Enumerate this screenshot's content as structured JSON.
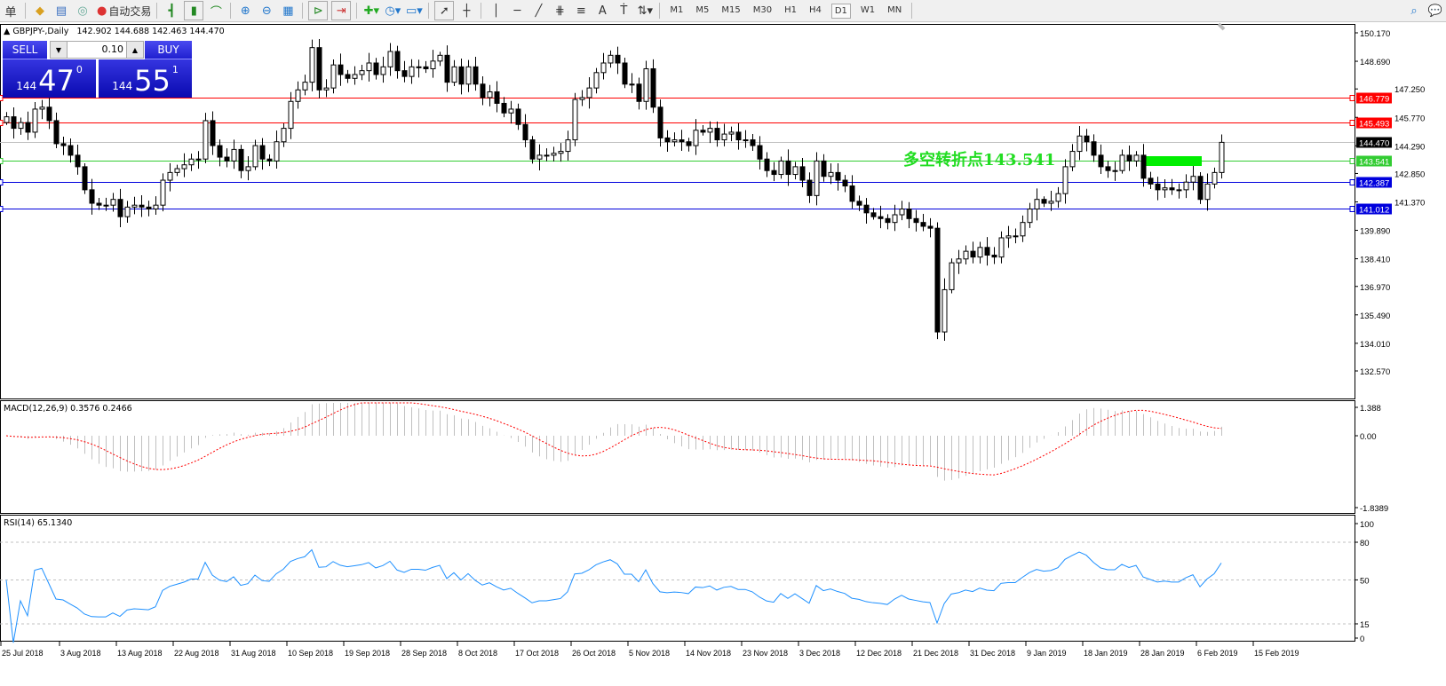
{
  "toolbar": {
    "menu_char": "单",
    "auto_trade": "自动交易",
    "icons": [
      "profiles-icon",
      "market-watch-icon",
      "signals-icon",
      "auto-trade-icon",
      "bar-chart-icon",
      "candlestick-icon",
      "line-chart-icon",
      "zoom-in-icon",
      "zoom-out-icon",
      "tile-windows-icon",
      "chart-shift-icon",
      "autoscroll-icon",
      "new-order-icon",
      "periods-icon",
      "templates-icon",
      "cursor-icon",
      "crosshair-icon",
      "vertical-line-icon",
      "horizontal-line-icon",
      "trendline-icon",
      "fibonacci-icon",
      "fibo-lines-icon",
      "text-icon",
      "text-label-icon",
      "arrows-icon",
      "search-icon",
      "chat-icon"
    ],
    "text_tool": "A",
    "timeframes": [
      "M1",
      "M5",
      "M15",
      "M30",
      "H1",
      "H4",
      "D1",
      "W1",
      "MN"
    ],
    "active_timeframe": "D1"
  },
  "chart": {
    "symbol": "GBPJPY-,Daily",
    "ohlc": "142.902 144.688 142.463 144.470"
  },
  "trade_panel": {
    "sell_label": "SELL",
    "buy_label": "BUY",
    "lot": "0.10",
    "sell": {
      "small": "144",
      "main": "47",
      "sup": "0"
    },
    "buy": {
      "small": "144",
      "main": "55",
      "sup": "1"
    }
  },
  "annotation": {
    "text": "多空转折点143.541",
    "color": "#22dd22"
  },
  "macd": {
    "label": "MACD(12,26,9) 0.3576 0.2466",
    "ticks": [
      "1.388",
      "0.00",
      "-1.8389"
    ]
  },
  "rsi": {
    "label": "RSI(14) 65.1340",
    "ticks": [
      "100",
      "80",
      "50",
      "15",
      "0"
    ]
  },
  "chart_data": {
    "type": "candlestick",
    "price_ticks": [
      "150.170",
      "148.690",
      "147.250",
      "145.770",
      "144.290",
      "142.850",
      "141.370",
      "139.890",
      "138.410",
      "136.970",
      "135.490",
      "134.010",
      "132.570"
    ],
    "ylim": [
      132.57,
      150.17
    ],
    "hlines": [
      {
        "price": "146.779",
        "color": "#ff0000"
      },
      {
        "price": "145.493",
        "color": "#ff0000"
      },
      {
        "price": "144.470",
        "color": "#c0c0c0",
        "label_bg": "#000000"
      },
      {
        "price": "143.541",
        "color": "#33cc33"
      },
      {
        "price": "142.387",
        "color": "#0000dd"
      },
      {
        "price": "141.012",
        "color": "#0000dd"
      }
    ],
    "dates": [
      "25 Jul 2018",
      "3 Aug 2018",
      "13 Aug 2018",
      "22 Aug 2018",
      "31 Aug 2018",
      "10 Sep 2018",
      "19 Sep 2018",
      "28 Sep 2018",
      "8 Oct 2018",
      "17 Oct 2018",
      "26 Oct 2018",
      "5 Nov 2018",
      "14 Nov 2018",
      "23 Nov 2018",
      "3 Dec 2018",
      "12 Dec 2018",
      "21 Dec 2018",
      "31 Dec 2018",
      "9 Jan 2019",
      "18 Jan 2019",
      "28 Jan 2019",
      "6 Feb 2019",
      "15 Feb 2019"
    ],
    "closes": [
      145.8,
      145.2,
      145.5,
      145.0,
      146.2,
      146.3,
      145.6,
      144.4,
      144.3,
      143.8,
      143.2,
      142.0,
      141.3,
      141.2,
      141.2,
      141.5,
      140.6,
      141.1,
      141.2,
      141.1,
      141.0,
      141.2,
      142.5,
      142.9,
      143.1,
      143.3,
      143.6,
      143.6,
      145.6,
      144.3,
      143.7,
      143.5,
      144.1,
      143.0,
      143.2,
      144.3,
      143.6,
      143.5,
      144.5,
      145.2,
      146.6,
      147.2,
      147.6,
      149.4,
      147.2,
      147.3,
      148.5,
      148.0,
      147.8,
      148.0,
      148.2,
      148.6,
      148.0,
      148.4,
      149.2,
      148.2,
      147.9,
      148.4,
      148.4,
      148.3,
      148.7,
      149.0,
      147.6,
      148.4,
      147.5,
      148.4,
      147.5,
      146.8,
      147.1,
      146.5,
      146.0,
      146.2,
      145.4,
      144.6,
      143.6,
      143.8,
      143.8,
      143.9,
      144.0,
      144.6,
      146.7,
      146.8,
      147.3,
      148.1,
      148.6,
      149.0,
      148.6,
      147.5,
      147.5,
      146.6,
      148.3,
      146.3,
      144.7,
      144.5,
      144.6,
      144.5,
      144.3,
      145.1,
      145.0,
      145.2,
      144.6,
      144.9,
      145.0,
      144.6,
      144.6,
      144.3,
      143.6,
      143.0,
      142.8,
      143.5,
      142.8,
      143.2,
      142.5,
      141.7,
      143.5,
      142.7,
      142.9,
      142.5,
      142.2,
      141.4,
      141.2,
      140.8,
      140.6,
      140.5,
      140.3,
      140.7,
      141.0,
      140.5,
      140.3,
      140.1,
      140.0,
      134.6,
      136.8,
      138.2,
      138.4,
      138.8,
      138.5,
      139.0,
      138.6,
      138.5,
      139.5,
      139.6,
      139.6,
      140.3,
      141.0,
      141.5,
      141.3,
      141.4,
      141.8,
      143.2,
      144.0,
      144.8,
      144.5,
      143.8,
      143.2,
      143.0,
      143.0,
      143.8,
      143.5,
      143.8,
      142.6,
      142.3,
      142.0,
      142.1,
      142.0,
      142.0,
      142.4,
      142.7,
      141.5,
      142.3,
      142.9,
      144.47
    ]
  }
}
